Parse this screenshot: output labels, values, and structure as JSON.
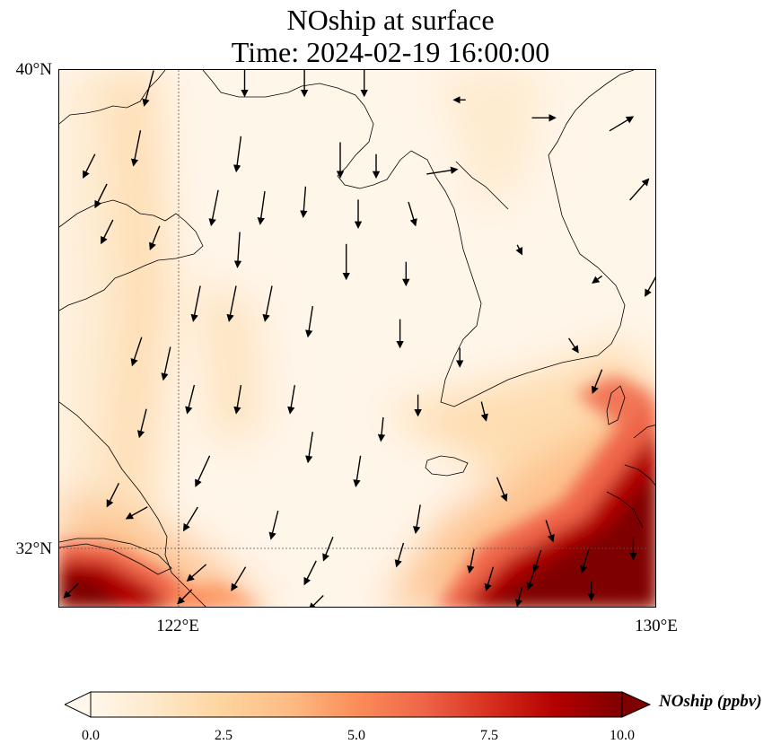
{
  "title": {
    "line1": "NOship at surface",
    "line2": "Time: 2024-02-19 16:00:00"
  },
  "axes": {
    "lat_ticks": [
      {
        "value": 40,
        "label": "40°N"
      },
      {
        "value": 32,
        "label": "32°N"
      }
    ],
    "lon_ticks": [
      {
        "value": 122,
        "label": "122°E"
      },
      {
        "value": 130,
        "label": "130°E"
      }
    ],
    "lon_range": [
      120,
      130
    ],
    "lat_range": [
      31,
      40
    ],
    "gridlines": "dotted at 122°E and 32°N"
  },
  "colorbar": {
    "label": "NOship (ppbv)",
    "colormap": "OrRd",
    "range": [
      0.0,
      10.0
    ],
    "extend": "both",
    "ticks": [
      "0.0",
      "2.5",
      "5.0",
      "7.5",
      "10.0"
    ],
    "colors": [
      "#fff7ec",
      "#fee8c8",
      "#fdd49e",
      "#fdbb84",
      "#fc8d59",
      "#ef6548",
      "#d7301f",
      "#b30000",
      "#7f0000"
    ]
  },
  "field_description": {
    "background_ppbv": 0.5,
    "hotspots": [
      {
        "region": "southeast corner near Kyushu / Korea Strait",
        "max_ppbv": 10.0
      },
      {
        "region": "southwest corner near Yangtze estuary",
        "max_ppbv": 10.0
      },
      {
        "region": "coastal Yellow Sea shipping lane",
        "max_ppbv": 2.0
      }
    ]
  },
  "wind_vectors": [
    {
      "lon": 121.5,
      "lat": 39.7,
      "u": -0.4,
      "v": -1.5
    },
    {
      "lon": 123.1,
      "lat": 39.8,
      "u": 0.0,
      "v": -1.2
    },
    {
      "lon": 124.1,
      "lat": 39.8,
      "u": 0.0,
      "v": -1.2
    },
    {
      "lon": 125.1,
      "lat": 39.8,
      "u": 0.0,
      "v": -1.2
    },
    {
      "lon": 126.7,
      "lat": 39.5,
      "u": -0.5,
      "v": 0.0
    },
    {
      "lon": 128.1,
      "lat": 39.2,
      "u": 1.0,
      "v": 0.0
    },
    {
      "lon": 129.4,
      "lat": 39.1,
      "u": 1.0,
      "v": 0.6
    },
    {
      "lon": 121.3,
      "lat": 38.7,
      "u": -0.3,
      "v": -1.5
    },
    {
      "lon": 120.5,
      "lat": 38.4,
      "u": -0.5,
      "v": -1.0
    },
    {
      "lon": 123.0,
      "lat": 38.6,
      "u": -0.2,
      "v": -1.5
    },
    {
      "lon": 124.7,
      "lat": 38.5,
      "u": 0.0,
      "v": -1.5
    },
    {
      "lon": 125.3,
      "lat": 38.4,
      "u": 0.0,
      "v": -1.0
    },
    {
      "lon": 126.4,
      "lat": 38.3,
      "u": 1.3,
      "v": 0.2
    },
    {
      "lon": 129.7,
      "lat": 38.0,
      "u": 0.8,
      "v": 0.9
    },
    {
      "lon": 120.7,
      "lat": 37.9,
      "u": -0.5,
      "v": -1.0
    },
    {
      "lon": 122.6,
      "lat": 37.7,
      "u": -0.3,
      "v": -1.5
    },
    {
      "lon": 123.4,
      "lat": 37.7,
      "u": -0.2,
      "v": -1.4
    },
    {
      "lon": 124.1,
      "lat": 37.8,
      "u": -0.1,
      "v": -1.3
    },
    {
      "lon": 125.0,
      "lat": 37.6,
      "u": 0.0,
      "v": -1.2
    },
    {
      "lon": 125.9,
      "lat": 37.6,
      "u": 0.3,
      "v": -1.0
    },
    {
      "lon": 120.8,
      "lat": 37.3,
      "u": -0.5,
      "v": -1.0
    },
    {
      "lon": 121.6,
      "lat": 37.2,
      "u": -0.4,
      "v": -1.0
    },
    {
      "lon": 123.0,
      "lat": 37.0,
      "u": -0.1,
      "v": -1.5
    },
    {
      "lon": 124.8,
      "lat": 36.8,
      "u": 0.0,
      "v": -1.5
    },
    {
      "lon": 125.8,
      "lat": 36.6,
      "u": 0.0,
      "v": -1.0
    },
    {
      "lon": 127.7,
      "lat": 37.0,
      "u": 0.2,
      "v": -0.4
    },
    {
      "lon": 129.0,
      "lat": 36.5,
      "u": -0.4,
      "v": -0.3
    },
    {
      "lon": 129.9,
      "lat": 36.4,
      "u": -0.5,
      "v": -0.9
    },
    {
      "lon": 122.3,
      "lat": 36.1,
      "u": -0.3,
      "v": -1.5
    },
    {
      "lon": 122.9,
      "lat": 36.1,
      "u": -0.3,
      "v": -1.5
    },
    {
      "lon": 123.5,
      "lat": 36.1,
      "u": -0.3,
      "v": -1.5
    },
    {
      "lon": 124.2,
      "lat": 35.8,
      "u": -0.2,
      "v": -1.3
    },
    {
      "lon": 125.7,
      "lat": 35.6,
      "u": 0.0,
      "v": -1.2
    },
    {
      "lon": 121.3,
      "lat": 35.3,
      "u": -0.4,
      "v": -1.2
    },
    {
      "lon": 121.8,
      "lat": 35.1,
      "u": -0.3,
      "v": -1.4
    },
    {
      "lon": 122.2,
      "lat": 34.5,
      "u": -0.3,
      "v": -1.2
    },
    {
      "lon": 123.0,
      "lat": 34.5,
      "u": -0.2,
      "v": -1.2
    },
    {
      "lon": 123.9,
      "lat": 34.5,
      "u": -0.2,
      "v": -1.2
    },
    {
      "lon": 125.4,
      "lat": 34.0,
      "u": -0.1,
      "v": -1.0
    },
    {
      "lon": 126.0,
      "lat": 34.4,
      "u": 0.0,
      "v": -0.9
    },
    {
      "lon": 126.7,
      "lat": 35.2,
      "u": 0.0,
      "v": -0.8
    },
    {
      "lon": 127.1,
      "lat": 34.3,
      "u": 0.2,
      "v": -0.8
    },
    {
      "lon": 128.6,
      "lat": 35.4,
      "u": 0.4,
      "v": -0.6
    },
    {
      "lon": 129.0,
      "lat": 34.8,
      "u": -0.4,
      "v": -1.0
    },
    {
      "lon": 121.4,
      "lat": 34.1,
      "u": -0.3,
      "v": -1.2
    },
    {
      "lon": 122.4,
      "lat": 33.3,
      "u": -0.6,
      "v": -1.3
    },
    {
      "lon": 124.2,
      "lat": 33.7,
      "u": -0.2,
      "v": -1.3
    },
    {
      "lon": 125.0,
      "lat": 33.3,
      "u": -0.2,
      "v": -1.3
    },
    {
      "lon": 126.0,
      "lat": 32.5,
      "u": -0.2,
      "v": -1.2
    },
    {
      "lon": 127.4,
      "lat": 33.0,
      "u": 0.4,
      "v": -1.0
    },
    {
      "lon": 128.2,
      "lat": 32.3,
      "u": 0.3,
      "v": -0.9
    },
    {
      "lon": 120.9,
      "lat": 32.9,
      "u": -0.5,
      "v": -1.0
    },
    {
      "lon": 121.3,
      "lat": 32.6,
      "u": -0.9,
      "v": -0.5
    },
    {
      "lon": 122.2,
      "lat": 32.5,
      "u": -0.6,
      "v": -1.0
    },
    {
      "lon": 123.6,
      "lat": 32.4,
      "u": -0.3,
      "v": -1.2
    },
    {
      "lon": 124.5,
      "lat": 32.0,
      "u": -0.4,
      "v": -1.0
    },
    {
      "lon": 125.7,
      "lat": 31.9,
      "u": -0.3,
      "v": -1.0
    },
    {
      "lon": 126.9,
      "lat": 31.8,
      "u": -0.2,
      "v": -1.0
    },
    {
      "lon": 128.0,
      "lat": 31.8,
      "u": -0.3,
      "v": -0.9
    },
    {
      "lon": 128.8,
      "lat": 31.8,
      "u": -0.3,
      "v": -1.0
    },
    {
      "lon": 129.6,
      "lat": 32.0,
      "u": 0.0,
      "v": -0.9
    },
    {
      "lon": 122.3,
      "lat": 31.6,
      "u": -0.8,
      "v": -0.7
    },
    {
      "lon": 123.0,
      "lat": 31.5,
      "u": -0.6,
      "v": -1.0
    },
    {
      "lon": 124.2,
      "lat": 31.6,
      "u": -0.5,
      "v": -1.0
    },
    {
      "lon": 127.2,
      "lat": 31.5,
      "u": -0.3,
      "v": -1.0
    },
    {
      "lon": 127.9,
      "lat": 31.5,
      "u": -0.3,
      "v": -0.9
    },
    {
      "lon": 120.2,
      "lat": 31.3,
      "u": -0.6,
      "v": -0.6
    },
    {
      "lon": 122.1,
      "lat": 31.2,
      "u": -0.6,
      "v": -0.6
    },
    {
      "lon": 124.3,
      "lat": 31.1,
      "u": -0.6,
      "v": -0.6
    },
    {
      "lon": 127.7,
      "lat": 31.2,
      "u": -0.2,
      "v": -0.8
    },
    {
      "lon": 128.9,
      "lat": 31.3,
      "u": 0.0,
      "v": -0.8
    }
  ]
}
